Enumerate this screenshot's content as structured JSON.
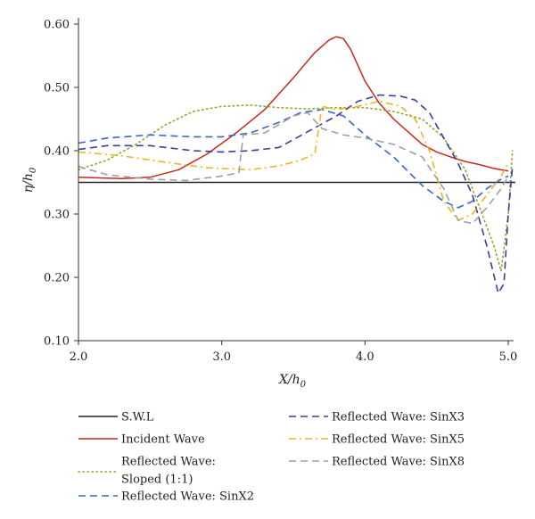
{
  "chart_data": {
    "type": "line",
    "xlabel": "X/h",
    "xlabel_sub": "0",
    "ylabel": "η/h",
    "ylabel_sub": "0",
    "xlim": [
      2.0,
      5.0
    ],
    "ylim": [
      0.1,
      0.6
    ],
    "xticks": [
      "2.0",
      "3.0",
      "4.0",
      "5.0"
    ],
    "yticks": [
      "0.10",
      "0.20",
      "0.30",
      "0.40",
      "0.50",
      "0.60"
    ],
    "grid": false,
    "legend_position": "bottom",
    "series": [
      {
        "name": "S.W.L",
        "color": "#222222",
        "style": "solid",
        "points": [
          [
            2.0,
            0.35
          ],
          [
            5.05,
            0.35
          ]
        ]
      },
      {
        "name": "Incident Wave",
        "color": "#c8281e",
        "style": "solid",
        "points": [
          [
            2.0,
            0.358
          ],
          [
            2.3,
            0.356
          ],
          [
            2.5,
            0.358
          ],
          [
            2.7,
            0.37
          ],
          [
            2.9,
            0.395
          ],
          [
            3.1,
            0.428
          ],
          [
            3.3,
            0.465
          ],
          [
            3.5,
            0.515
          ],
          [
            3.65,
            0.555
          ],
          [
            3.75,
            0.575
          ],
          [
            3.8,
            0.58
          ],
          [
            3.85,
            0.577
          ],
          [
            3.9,
            0.56
          ],
          [
            4.0,
            0.51
          ],
          [
            4.1,
            0.475
          ],
          [
            4.2,
            0.45
          ],
          [
            4.3,
            0.43
          ],
          [
            4.4,
            0.41
          ],
          [
            4.5,
            0.398
          ],
          [
            4.6,
            0.39
          ],
          [
            4.7,
            0.383
          ],
          [
            4.8,
            0.378
          ],
          [
            4.9,
            0.372
          ],
          [
            5.0,
            0.368
          ]
        ]
      },
      {
        "name": "Reflected Wave: Sloped (1:1)",
        "legend_lines": [
          "Reflected Wave:",
          "Sloped (1:1)"
        ],
        "color": "#8ca830",
        "style": "dotted",
        "points": [
          [
            2.0,
            0.37
          ],
          [
            2.2,
            0.385
          ],
          [
            2.4,
            0.41
          ],
          [
            2.6,
            0.44
          ],
          [
            2.8,
            0.462
          ],
          [
            3.0,
            0.47
          ],
          [
            3.2,
            0.472
          ],
          [
            3.4,
            0.468
          ],
          [
            3.6,
            0.466
          ],
          [
            3.8,
            0.468
          ],
          [
            4.0,
            0.468
          ],
          [
            4.2,
            0.462
          ],
          [
            4.4,
            0.45
          ],
          [
            4.55,
            0.42
          ],
          [
            4.7,
            0.37
          ],
          [
            4.8,
            0.31
          ],
          [
            4.9,
            0.25
          ],
          [
            4.95,
            0.21
          ],
          [
            5.0,
            0.3
          ],
          [
            5.03,
            0.4
          ]
        ]
      },
      {
        "name": "Reflected Wave: SinX2",
        "color": "#3c64c8",
        "style": "dashed",
        "points": [
          [
            2.0,
            0.412
          ],
          [
            2.2,
            0.42
          ],
          [
            2.5,
            0.425
          ],
          [
            2.8,
            0.422
          ],
          [
            3.0,
            0.422
          ],
          [
            3.2,
            0.428
          ],
          [
            3.4,
            0.445
          ],
          [
            3.55,
            0.46
          ],
          [
            3.7,
            0.465
          ],
          [
            3.85,
            0.455
          ],
          [
            4.0,
            0.425
          ],
          [
            4.2,
            0.39
          ],
          [
            4.4,
            0.345
          ],
          [
            4.55,
            0.32
          ],
          [
            4.65,
            0.31
          ],
          [
            4.75,
            0.32
          ],
          [
            4.85,
            0.34
          ],
          [
            4.95,
            0.355
          ],
          [
            5.0,
            0.36
          ]
        ]
      },
      {
        "name": "Reflected Wave: SinX3",
        "color": "#3c3ca0",
        "style": "dashed",
        "points": [
          [
            2.0,
            0.402
          ],
          [
            2.2,
            0.408
          ],
          [
            2.5,
            0.408
          ],
          [
            2.8,
            0.4
          ],
          [
            3.0,
            0.398
          ],
          [
            3.2,
            0.4
          ],
          [
            3.4,
            0.405
          ],
          [
            3.6,
            0.43
          ],
          [
            3.8,
            0.455
          ],
          [
            3.95,
            0.478
          ],
          [
            4.1,
            0.488
          ],
          [
            4.25,
            0.486
          ],
          [
            4.35,
            0.48
          ],
          [
            4.45,
            0.46
          ],
          [
            4.55,
            0.42
          ],
          [
            4.65,
            0.38
          ],
          [
            4.75,
            0.33
          ],
          [
            4.85,
            0.25
          ],
          [
            4.93,
            0.175
          ],
          [
            4.97,
            0.19
          ],
          [
            5.0,
            0.3
          ],
          [
            5.03,
            0.375
          ]
        ]
      },
      {
        "name": "Reflected Wave: SinX5",
        "color": "#e8b820",
        "style": "dashdot",
        "points": [
          [
            2.0,
            0.398
          ],
          [
            2.3,
            0.392
          ],
          [
            2.6,
            0.382
          ],
          [
            2.9,
            0.373
          ],
          [
            3.2,
            0.37
          ],
          [
            3.4,
            0.376
          ],
          [
            3.55,
            0.385
          ],
          [
            3.65,
            0.395
          ],
          [
            3.7,
            0.47
          ],
          [
            3.8,
            0.465
          ],
          [
            3.95,
            0.47
          ],
          [
            4.1,
            0.478
          ],
          [
            4.25,
            0.47
          ],
          [
            4.35,
            0.45
          ],
          [
            4.45,
            0.4
          ],
          [
            4.55,
            0.32
          ],
          [
            4.65,
            0.29
          ],
          [
            4.75,
            0.3
          ],
          [
            4.85,
            0.33
          ],
          [
            4.95,
            0.36
          ],
          [
            5.0,
            0.38
          ]
        ]
      },
      {
        "name": "Reflected Wave: SinX8",
        "color": "#a0a0a0",
        "style": "dashed",
        "points": [
          [
            2.0,
            0.375
          ],
          [
            2.2,
            0.362
          ],
          [
            2.5,
            0.355
          ],
          [
            2.75,
            0.353
          ],
          [
            3.0,
            0.36
          ],
          [
            3.12,
            0.365
          ],
          [
            3.15,
            0.425
          ],
          [
            3.3,
            0.428
          ],
          [
            3.5,
            0.455
          ],
          [
            3.6,
            0.46
          ],
          [
            3.7,
            0.435
          ],
          [
            3.85,
            0.425
          ],
          [
            4.0,
            0.42
          ],
          [
            4.2,
            0.41
          ],
          [
            4.4,
            0.39
          ],
          [
            4.55,
            0.34
          ],
          [
            4.65,
            0.29
          ],
          [
            4.75,
            0.285
          ],
          [
            4.85,
            0.31
          ],
          [
            4.95,
            0.34
          ],
          [
            5.0,
            0.36
          ]
        ]
      }
    ]
  }
}
